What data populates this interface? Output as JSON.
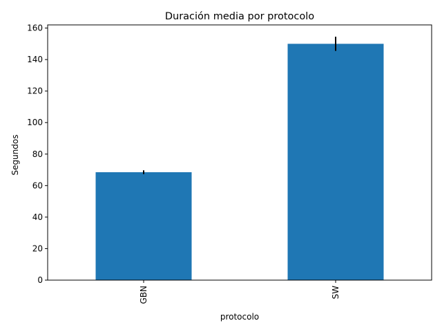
{
  "chart_data": {
    "type": "bar",
    "title": "Duración media por protocolo",
    "xlabel": "protocolo",
    "ylabel": "Segundos",
    "categories": [
      "GBN",
      "SW"
    ],
    "values": [
      68.5,
      150
    ],
    "errors": [
      1.2,
      4.5
    ],
    "ylim": [
      0,
      162
    ],
    "yticks": [
      0,
      20,
      40,
      60,
      80,
      100,
      120,
      140,
      160
    ],
    "bar_color": "#1f77b4",
    "error_color": "#000000",
    "grid": false,
    "legend": "none"
  }
}
